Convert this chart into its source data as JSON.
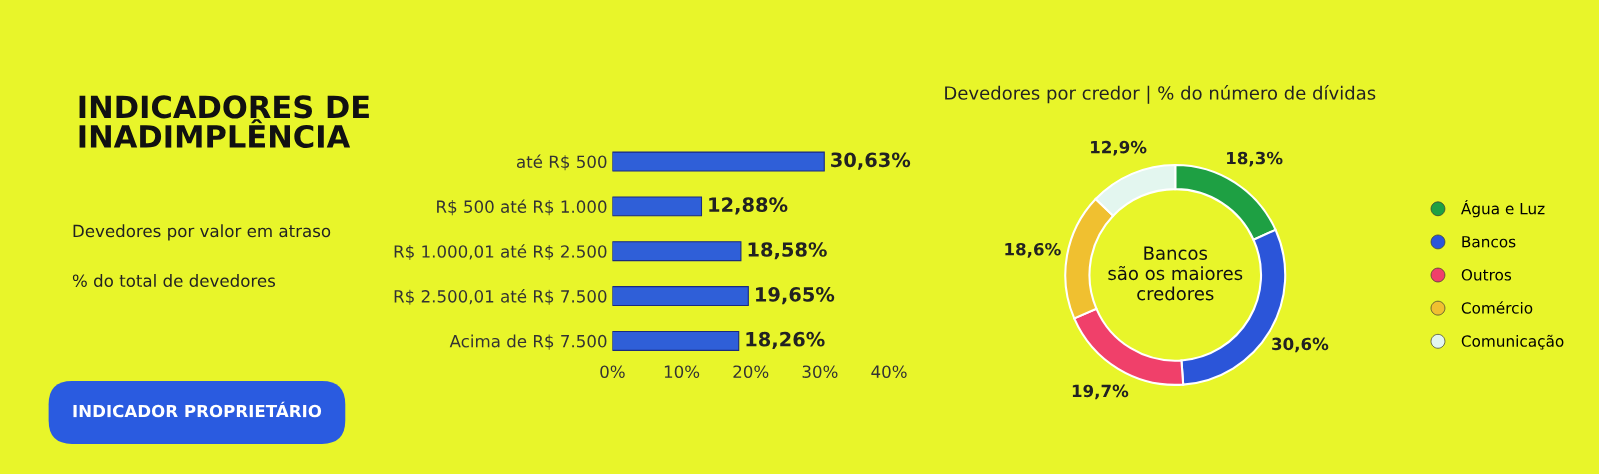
{
  "chart_data": [
    {
      "type": "bar",
      "orientation": "horizontal",
      "title": "INDICADORES DE\nINADIMPLÊNCIA",
      "subtitle": "Devedores por valor em atraso",
      "annotations": [
        "% do total de devedores",
        "INDICADOR PROPRIETÁRIO"
      ],
      "categories": [
        "até R$ 500",
        "R$ 500 até R$ 1.000",
        "R$ 1.000,01 até R$ 2.500",
        "R$ 2.500,01 até R$ 7.500",
        "Acima de R$ 7.500"
      ],
      "values": [
        30.63,
        12.88,
        18.58,
        19.65,
        18.26
      ],
      "value_labels": [
        "30,63%",
        "12,88%",
        "18,58%",
        "19,65%",
        "18,26%"
      ],
      "color": "#2f5fd8",
      "xlim": [
        0,
        40
      ],
      "xticks": [
        {
          "value": 0,
          "label": "0%"
        },
        {
          "value": 10,
          "label": "10%"
        },
        {
          "value": 20,
          "label": "20%"
        },
        {
          "value": 30,
          "label": "30%"
        },
        {
          "value": 40,
          "label": "40%"
        }
      ],
      "grid": false
    },
    {
      "type": "donut",
      "title": "Devedores por credor | % do número de dívidas",
      "annotations": [
        "Bancos\nsão os maiores\ncredores"
      ],
      "categories": [
        "Água e Luz",
        "Bancos",
        "Outros",
        "Comércio",
        "Comunicação"
      ],
      "values": [
        18.3,
        30.6,
        19.7,
        18.6,
        12.9
      ],
      "value_labels": [
        "18,3%",
        "30,6%",
        "19,7%",
        "18,6%",
        "12,9%"
      ],
      "colors": [
        "#1ea043",
        "#2b55d9",
        "#f0406a",
        "#f0c030",
        "#e3f6ef"
      ],
      "legend": "right"
    }
  ]
}
